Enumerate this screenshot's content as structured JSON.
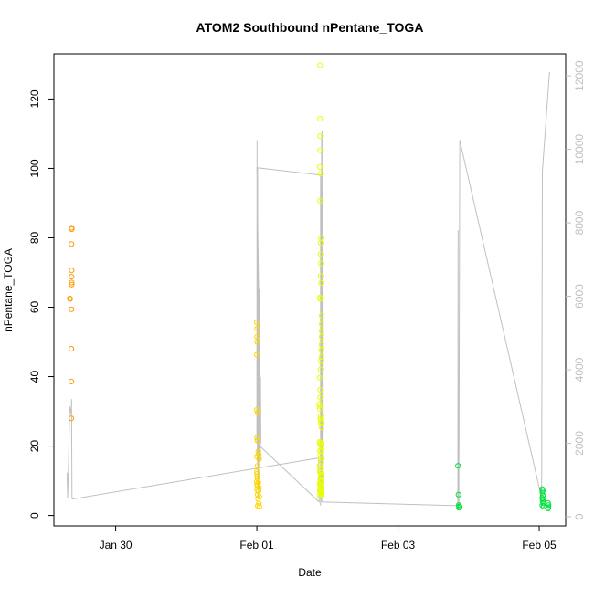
{
  "chart_data": {
    "type": "scatter",
    "title": "ATOM2 Southbound nPentane_TOGA",
    "xlabel": "Date",
    "ylabel": "nPentane_TOGA",
    "x_type": "date",
    "xlim": [
      "2017-01-29 03:00",
      "2017-02-05 09:00"
    ],
    "ylim": [
      -3,
      133
    ],
    "y2lim": [
      -250,
      12600
    ],
    "x_ticks": [
      {
        "label": "Jan 30",
        "date": "2017-01-30 00:00"
      },
      {
        "label": "Feb 01",
        "date": "2017-02-01 00:00"
      },
      {
        "label": "Feb 03",
        "date": "2017-02-03 00:00"
      },
      {
        "label": "Feb 05",
        "date": "2017-02-05 00:00"
      }
    ],
    "y_ticks": [
      "0",
      "20",
      "40",
      "60",
      "80",
      "100",
      "120"
    ],
    "y2_ticks": [
      "0",
      "2000",
      "4000",
      "6000",
      "8000",
      "10000",
      "12000"
    ],
    "grid": false,
    "legend": "none",
    "colors": {
      "axis": "#000000",
      "altitude_line": "#c0c0c0",
      "right_axis": "#c0c0c0"
    },
    "series": [
      {
        "color": "#ff9a00",
        "points": [
          [
            "2017-01-29 08:24",
            62.5
          ],
          [
            "2017-01-29 08:30",
            62.4
          ],
          [
            "2017-01-29 08:59",
            82.9
          ],
          [
            "2017-01-29 09:04",
            82.5
          ],
          [
            "2017-01-29 08:58",
            78.2
          ],
          [
            "2017-01-29 09:00",
            70.6
          ],
          [
            "2017-01-29 08:59",
            68.8
          ],
          [
            "2017-01-29 09:01",
            67.1
          ],
          [
            "2017-01-29 09:02",
            66.5
          ],
          [
            "2017-01-29 08:58",
            59.4
          ],
          [
            "2017-01-29 08:57",
            48.0
          ],
          [
            "2017-01-29 08:56",
            38.6
          ],
          [
            "2017-01-29 08:55",
            28.0
          ]
        ]
      },
      {
        "color": "#ffd600",
        "points": [
          [
            "2017-02-01 00:00",
            55.6
          ],
          [
            "2017-02-01 00:05",
            53.8
          ],
          [
            "2017-02-01 00:02",
            51.5
          ],
          [
            "2017-02-01 00:07",
            50.0
          ],
          [
            "2017-02-01 00:01",
            46.3
          ],
          [
            "2017-02-01 00:00",
            30.4
          ],
          [
            "2017-02-01 00:20",
            29.6
          ],
          [
            "2017-02-01 00:05",
            22.4
          ],
          [
            "2017-02-01 00:10",
            21.6
          ],
          [
            "2017-02-01 00:30",
            18.4
          ],
          [
            "2017-02-01 00:40",
            17.6
          ],
          [
            "2017-02-01 00:03",
            17.0
          ],
          [
            "2017-02-01 00:45",
            16.3
          ],
          [
            "2017-02-01 00:15",
            14.3
          ],
          [
            "2017-02-01 00:02",
            12.6
          ],
          [
            "2017-02-01 00:05",
            12.0
          ],
          [
            "2017-02-01 00:10",
            11.2
          ],
          [
            "2017-02-01 00:20",
            10.6
          ],
          [
            "2017-02-01 00:00",
            9.8
          ],
          [
            "2017-02-01 00:04",
            9.0
          ],
          [
            "2017-02-01 00:30",
            9.4
          ],
          [
            "2017-02-01 00:10",
            8.6
          ],
          [
            "2017-02-01 00:45",
            8.0
          ],
          [
            "2017-02-01 00:08",
            7.4
          ],
          [
            "2017-02-01 00:35",
            7.0
          ],
          [
            "2017-02-01 00:15",
            6.0
          ],
          [
            "2017-02-01 00:50",
            5.4
          ],
          [
            "2017-02-01 00:25",
            4.8
          ],
          [
            "2017-02-01 00:40",
            3.5
          ],
          [
            "2017-02-01 00:20",
            2.8
          ],
          [
            "2017-02-01 00:50",
            2.5
          ]
        ]
      },
      {
        "color": "#e8ff00",
        "points": [
          [
            "2017-02-01 21:30",
            129.7
          ],
          [
            "2017-02-01 21:31",
            114.3
          ],
          [
            "2017-02-01 21:32",
            109.3
          ],
          [
            "2017-02-01 21:33",
            105.2
          ],
          [
            "2017-02-01 21:25",
            100.4
          ],
          [
            "2017-02-01 21:40",
            98.5
          ],
          [
            "2017-02-01 21:30",
            90.7
          ],
          [
            "2017-02-01 21:45",
            80.0
          ],
          [
            "2017-02-01 21:42",
            78.5
          ],
          [
            "2017-02-01 21:40",
            75.3
          ],
          [
            "2017-02-01 21:43",
            72.6
          ],
          [
            "2017-02-01 21:41",
            69.0
          ],
          [
            "2017-02-01 21:50",
            67.0
          ],
          [
            "2017-02-01 21:30",
            62.8
          ],
          [
            "2017-02-01 21:35",
            62.4
          ],
          [
            "2017-02-01 22:05",
            57.6
          ],
          [
            "2017-02-01 22:04",
            55.2
          ],
          [
            "2017-02-01 22:03",
            53.1
          ],
          [
            "2017-02-01 22:02",
            51.5
          ],
          [
            "2017-02-01 22:01",
            49.2
          ],
          [
            "2017-02-01 21:55",
            47.6
          ],
          [
            "2017-02-01 22:00",
            45.6
          ],
          [
            "2017-02-01 21:45",
            44.5
          ],
          [
            "2017-02-01 21:40",
            42.1
          ],
          [
            "2017-02-01 21:20",
            39.7
          ],
          [
            "2017-02-01 21:35",
            36.2
          ],
          [
            "2017-02-01 21:30",
            34.0
          ],
          [
            "2017-02-01 21:20",
            32.2
          ],
          [
            "2017-02-01 21:15",
            31.6
          ],
          [
            "2017-02-01 21:25",
            30.7
          ],
          [
            "2017-02-01 21:40",
            28.6
          ],
          [
            "2017-02-01 21:35",
            27.9
          ],
          [
            "2017-02-01 21:50",
            27.0
          ],
          [
            "2017-02-01 21:45",
            26.5
          ],
          [
            "2017-02-01 22:00",
            25.4
          ],
          [
            "2017-02-01 21:20",
            21.2
          ],
          [
            "2017-02-01 21:30",
            20.6
          ],
          [
            "2017-02-01 21:40",
            21.0
          ],
          [
            "2017-02-01 21:50",
            20.2
          ],
          [
            "2017-02-01 22:05",
            19.6
          ],
          [
            "2017-02-01 21:25",
            18.6
          ],
          [
            "2017-02-01 21:55",
            18.6
          ],
          [
            "2017-02-01 21:35",
            17.3
          ],
          [
            "2017-02-01 21:45",
            16.5
          ],
          [
            "2017-02-01 22:00",
            15.6
          ],
          [
            "2017-02-01 21:20",
            14.3
          ],
          [
            "2017-02-01 21:30",
            13.5
          ],
          [
            "2017-02-01 21:25",
            12.6
          ],
          [
            "2017-02-01 21:40",
            12.3
          ],
          [
            "2017-02-01 21:50",
            11.7
          ],
          [
            "2017-02-01 22:05",
            11.2
          ],
          [
            "2017-02-01 21:35",
            10.4
          ],
          [
            "2017-02-01 21:45",
            10.0
          ],
          [
            "2017-02-01 21:55",
            9.6
          ],
          [
            "2017-02-01 21:20",
            9.2
          ],
          [
            "2017-02-01 21:30",
            8.8
          ],
          [
            "2017-02-01 21:40",
            8.4
          ],
          [
            "2017-02-01 21:50",
            8.0
          ],
          [
            "2017-02-01 22:00",
            7.6
          ],
          [
            "2017-02-01 21:25",
            7.2
          ],
          [
            "2017-02-01 21:35",
            6.9
          ],
          [
            "2017-02-01 21:45",
            6.6
          ],
          [
            "2017-02-01 21:55",
            6.4
          ],
          [
            "2017-02-01 22:05",
            6.1
          ],
          [
            "2017-02-01 21:20",
            5.8
          ]
        ]
      },
      {
        "color": "#00e03a",
        "points": [
          [
            "2017-02-03 20:24",
            14.3
          ],
          [
            "2017-02-03 20:33",
            6.0
          ],
          [
            "2017-02-03 20:40",
            3.0
          ],
          [
            "2017-02-03 20:50",
            2.6
          ],
          [
            "2017-02-03 20:45",
            2.2
          ],
          [
            "2017-02-03 21:00",
            2.5
          ],
          [
            "2017-02-05 01:00",
            7.6
          ],
          [
            "2017-02-05 01:10",
            7.2
          ],
          [
            "2017-02-05 01:05",
            6.6
          ],
          [
            "2017-02-05 01:15",
            5.7
          ],
          [
            "2017-02-05 01:00",
            5.0
          ],
          [
            "2017-02-05 01:20",
            4.6
          ],
          [
            "2017-02-05 01:10",
            4.0
          ],
          [
            "2017-02-05 01:25",
            3.5
          ],
          [
            "2017-02-05 01:05",
            2.9
          ],
          [
            "2017-02-05 01:30",
            2.6
          ],
          [
            "2017-02-05 03:00",
            3.6
          ],
          [
            "2017-02-05 03:10",
            3.0
          ],
          [
            "2017-02-05 03:05",
            2.4
          ],
          [
            "2017-02-05 03:00",
            2.0
          ]
        ]
      }
    ],
    "altitude_line": [
      [
        "2017-01-29 07:30",
        1200
      ],
      [
        "2017-01-29 07:40",
        500
      ],
      [
        "2017-01-29 08:00",
        1500
      ],
      [
        "2017-01-29 08:20",
        3000
      ],
      [
        "2017-01-29 08:50",
        2800
      ],
      [
        "2017-01-29 09:00",
        3200
      ],
      [
        "2017-01-29 09:10",
        500
      ],
      [
        "2017-01-29 09:20",
        480
      ],
      [
        "2017-02-01 21:00",
        1600
      ],
      [
        "2017-02-01 21:10",
        400
      ],
      [
        "2017-02-01 00:00",
        2000
      ],
      [
        "2017-02-01 00:05",
        10250
      ],
      [
        "2017-02-01 00:10",
        1500
      ],
      [
        "2017-02-01 00:15",
        9500
      ],
      [
        "2017-02-01 00:20",
        800
      ],
      [
        "2017-02-01 00:30",
        6400
      ],
      [
        "2017-02-01 00:35",
        500
      ],
      [
        "2017-02-01 00:45",
        6200
      ],
      [
        "2017-02-01 00:50",
        1500
      ],
      [
        "2017-02-01 00:55",
        4000
      ],
      [
        "2017-02-01 01:00",
        1500
      ],
      [
        "2017-02-01 01:05",
        3900
      ],
      [
        "2017-02-01 01:10",
        1500
      ],
      [
        "2017-02-01 01:15",
        3800
      ],
      [
        "2017-02-01 01:20",
        2000
      ],
      [
        "2017-02-01 00:00",
        9500
      ],
      [
        "2017-02-01 21:40",
        9300
      ],
      [
        "2017-02-01 21:40",
        300
      ],
      [
        "2017-02-01 21:50",
        9000
      ],
      [
        "2017-02-01 21:55",
        500
      ],
      [
        "2017-02-01 22:00",
        10400
      ],
      [
        "2017-02-01 22:05",
        400
      ],
      [
        "2017-02-01 22:10",
        10500
      ],
      [
        "2017-02-01 22:15",
        600
      ],
      [
        "2017-02-01 22:20",
        1000
      ],
      [
        "2017-02-01 22:00",
        400
      ],
      [
        "2017-02-03 20:20",
        300
      ],
      [
        "2017-02-03 20:25",
        7800
      ],
      [
        "2017-02-03 20:30",
        200
      ],
      [
        "2017-02-03 20:40",
        200
      ],
      [
        "2017-02-03 21:00",
        10250
      ],
      [
        "2017-02-05 00:50",
        500
      ],
      [
        "2017-02-05 01:05",
        9400
      ],
      [
        "2017-02-05 03:30",
        12100
      ]
    ]
  }
}
